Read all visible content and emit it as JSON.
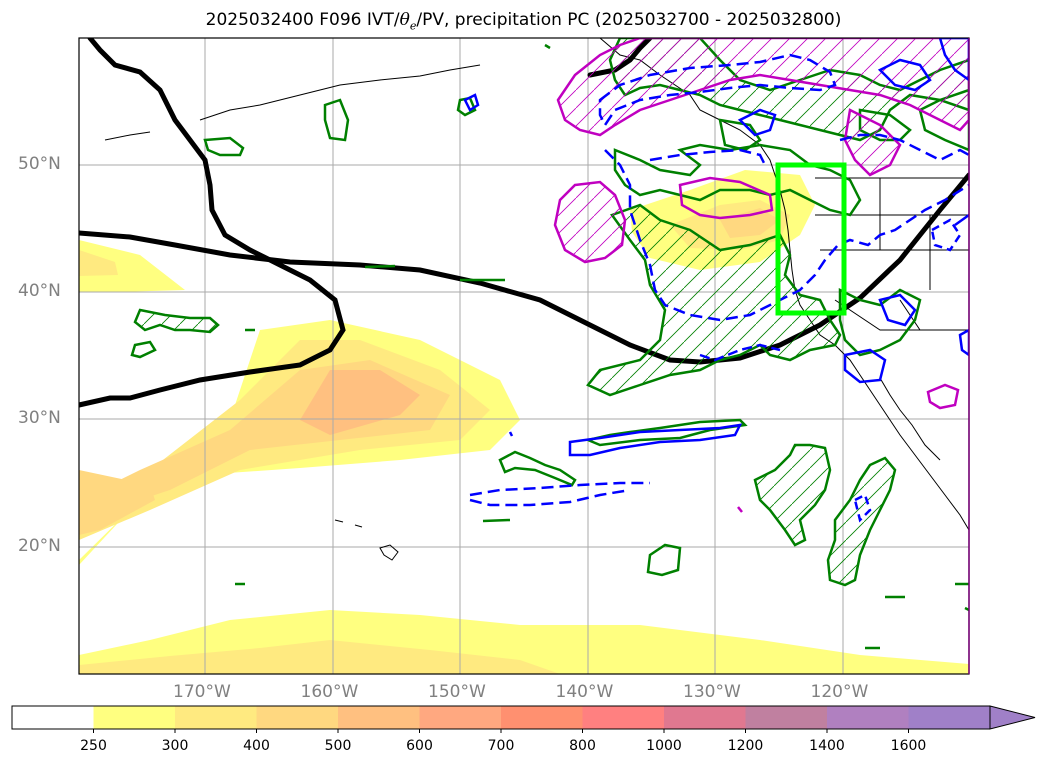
{
  "title": {
    "prefix": "2025032400 F096 IVT/",
    "theta": "θ",
    "theta_sub": "e",
    "suffix": "/PV, precipitation PC (2025032700 - 2025032800)"
  },
  "axes": {
    "lat_labels": [
      "50°N",
      "40°N",
      "30°N",
      "20°N"
    ],
    "lat_values": [
      50,
      40,
      30,
      20
    ],
    "lon_labels": [
      "170°W",
      "160°W",
      "150°W",
      "140°W",
      "130°W",
      "120°W"
    ],
    "lon_values": [
      -170,
      -160,
      -150,
      -140,
      -130,
      -120
    ],
    "grid": true
  },
  "colorbar": {
    "ticks": [
      "250",
      "300",
      "400",
      "500",
      "600",
      "700",
      "800",
      "1000",
      "1200",
      "1400",
      "1600"
    ],
    "extend": "max",
    "colors": [
      "#ffffff",
      "#ffff80",
      "#ffea80",
      "#ffd880",
      "#ffc080",
      "#ffa880",
      "#ff9070",
      "#ff8080",
      "#e07890",
      "#c080a0",
      "#b080c0",
      "#a080c8"
    ]
  },
  "colors": {
    "ivt_fill": "#ffe680",
    "pv_line": "#000000",
    "green_contour": "#008000",
    "magenta_contour": "#c000c0",
    "blue_contour": "#0000ff",
    "highlight_box": "#00ff00"
  }
}
